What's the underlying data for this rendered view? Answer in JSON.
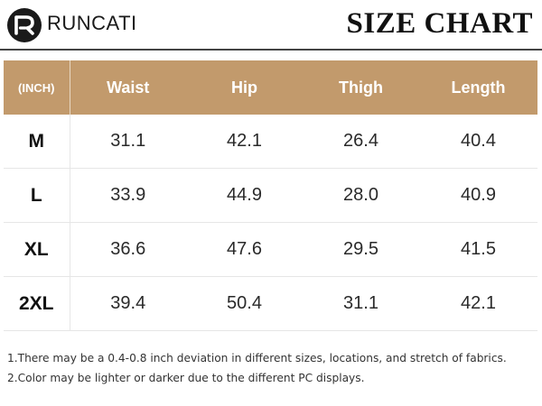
{
  "header": {
    "brand": "RUNCATI",
    "title": "SIZE CHART",
    "logo_icon": "runcati-r-logo-icon"
  },
  "table": {
    "unit_label": "(INCH)",
    "columns": [
      "Waist",
      "Hip",
      "Thigh",
      "Length"
    ],
    "rows": [
      {
        "size": "M",
        "values": [
          "31.1",
          "42.1",
          "26.4",
          "40.4"
        ]
      },
      {
        "size": "L",
        "values": [
          "33.9",
          "44.9",
          "28.0",
          "40.9"
        ]
      },
      {
        "size": "XL",
        "values": [
          "36.6",
          "47.6",
          "29.5",
          "41.5"
        ]
      },
      {
        "size": "2XL",
        "values": [
          "39.4",
          "50.4",
          "31.1",
          "42.1"
        ]
      }
    ]
  },
  "notes": [
    "1.There may be a 0.4-0.8 inch deviation in different sizes, locations, and stretch of fabrics.",
    "2.Color may be lighter or darker due to the different PC displays."
  ],
  "colors": {
    "header_bg": "#c29a6c",
    "header_text": "#ffffff",
    "logo_bg": "#1a1a1a"
  }
}
